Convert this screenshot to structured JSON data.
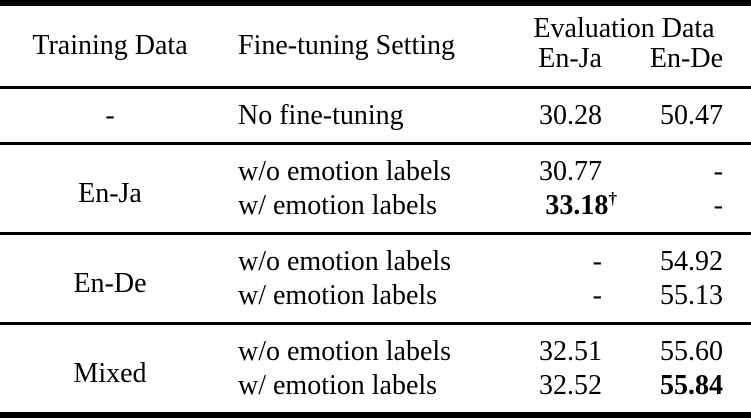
{
  "table": {
    "header": {
      "training_data": "Training Data",
      "fine_tuning_setting": "Fine-tuning Setting",
      "evaluation_data": "Evaluation Data",
      "subcolumns": [
        "En-Ja",
        "En-De"
      ]
    },
    "groups": [
      {
        "training_data": "-",
        "rows": [
          {
            "setting": "No fine-tuning",
            "en_ja": "30.28",
            "en_de": "50.47"
          }
        ]
      },
      {
        "training_data": "En-Ja",
        "rows": [
          {
            "setting": "w/o emotion labels",
            "en_ja": "30.77",
            "en_de": "-"
          },
          {
            "setting": "w/ emotion labels",
            "en_ja": "33.18",
            "en_ja_sup": "†",
            "en_de": "-"
          }
        ]
      },
      {
        "training_data": "En-De",
        "rows": [
          {
            "setting": "w/o emotion labels",
            "en_ja": "-",
            "en_de": "54.92"
          },
          {
            "setting": "w/ emotion labels",
            "en_ja": "-",
            "en_de": "55.13"
          }
        ]
      },
      {
        "training_data": "Mixed",
        "rows": [
          {
            "setting": "w/o emotion labels",
            "en_ja": "32.51",
            "en_de": "55.60"
          },
          {
            "setting": "w/ emotion labels",
            "en_ja": "32.52",
            "en_de": "55.84"
          }
        ]
      }
    ],
    "styles": {
      "text_color": "#000000",
      "background_color": "#ffffff"
    }
  }
}
